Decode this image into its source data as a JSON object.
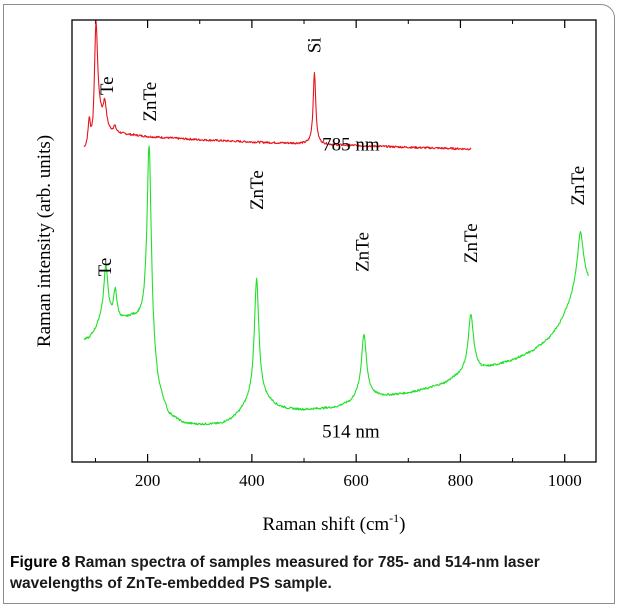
{
  "chart_data": {
    "type": "line",
    "title": "",
    "xlabel": "Raman shift (cm",
    "xlabel_sup": "-1",
    "xlabel_end": ")",
    "ylabel": "Raman intensity (arb. units)",
    "xlim": [
      55,
      1060
    ],
    "ylim": [
      0,
      100
    ],
    "x_ticks": [
      200,
      400,
      600,
      800,
      1000
    ],
    "x_tick_labels": [
      "200",
      "400",
      "600",
      "800",
      "1000"
    ],
    "minor_x_ticks": [
      100,
      300,
      500,
      700,
      900
    ],
    "grid": false,
    "series": [
      {
        "name": "785 nm",
        "color": "#e8141c",
        "x_range": [
          78,
          820
        ],
        "baseline": [
          [
            78,
            70.4
          ],
          [
            84,
            70.8
          ],
          [
            95,
            71.6
          ],
          [
            100,
            76.5
          ],
          [
            103,
            78.2
          ],
          [
            108,
            78.0
          ],
          [
            113,
            76.3
          ],
          [
            120,
            74.8
          ],
          [
            130,
            74.4
          ],
          [
            150,
            74.2
          ],
          [
            200,
            73.6
          ],
          [
            300,
            72.9
          ],
          [
            400,
            72.4
          ],
          [
            500,
            72.0
          ],
          [
            515,
            71.9
          ],
          [
            600,
            71.6
          ],
          [
            700,
            71.2
          ],
          [
            820,
            70.8
          ]
        ],
        "peaks": [
          {
            "center": 88,
            "height": 5.5,
            "width": 2.5
          },
          {
            "center": 101,
            "height": 22.0,
            "width": 3.5
          },
          {
            "center": 118,
            "height": 6.0,
            "width": 4.0
          },
          {
            "center": 137,
            "height": 1.4,
            "width": 3.0
          },
          {
            "center": 520,
            "height": 16.2,
            "width": 3.0
          }
        ]
      },
      {
        "name": "514 nm",
        "color": "#22e02a",
        "x_range": [
          78,
          1045
        ],
        "baseline": [
          [
            78,
            27.5
          ],
          [
            88,
            27.8
          ],
          [
            100,
            29.5
          ],
          [
            110,
            31.5
          ],
          [
            150,
            31.8
          ],
          [
            170,
            32.3
          ],
          [
            185,
            31.5
          ],
          [
            195,
            30.0
          ],
          [
            220,
            16.0
          ],
          [
            240,
            10.5
          ],
          [
            270,
            8.6
          ],
          [
            300,
            8.4
          ],
          [
            340,
            8.6
          ],
          [
            360,
            9.6
          ],
          [
            375,
            11.0
          ],
          [
            390,
            13.0
          ],
          [
            410,
            16.5
          ],
          [
            430,
            14.0
          ],
          [
            450,
            12.5
          ],
          [
            470,
            12.0
          ],
          [
            500,
            11.8
          ],
          [
            560,
            12.3
          ],
          [
            590,
            13.5
          ],
          [
            612,
            16.0
          ],
          [
            640,
            15.0
          ],
          [
            660,
            15.0
          ],
          [
            700,
            15.6
          ],
          [
            740,
            16.7
          ],
          [
            770,
            17.8
          ],
          [
            800,
            19.8
          ],
          [
            822,
            21.5
          ],
          [
            840,
            21.0
          ],
          [
            860,
            21.6
          ],
          [
            900,
            23.0
          ],
          [
            940,
            25.2
          ],
          [
            970,
            28.0
          ],
          [
            990,
            31.0
          ],
          [
            1010,
            36.0
          ],
          [
            1030,
            42.0
          ],
          [
            1045,
            40.5
          ]
        ],
        "peaks": [
          {
            "center": 120,
            "height": 12.5,
            "width": 5.0
          },
          {
            "center": 138,
            "height": 6.5,
            "width": 4.0
          },
          {
            "center": 203,
            "height": 46.0,
            "width": 5.0
          },
          {
            "center": 409,
            "height": 25.0,
            "width": 5.0
          },
          {
            "center": 615,
            "height": 13.0,
            "width": 5.5
          },
          {
            "center": 820,
            "height": 12.0,
            "width": 6.0
          },
          {
            "center": 1030,
            "height": 10.0,
            "width": 7.0
          }
        ]
      }
    ],
    "annotations": [
      {
        "text": "Te",
        "x": 122,
        "y": 83,
        "rotate": true
      },
      {
        "text": "Si",
        "x": 520,
        "y": 92.5,
        "rotate": true
      },
      {
        "text": "785 nm",
        "x": 590,
        "y": 70.5,
        "rotate": false
      },
      {
        "text": "ZnTe",
        "x": 205,
        "y": 77,
        "rotate": true
      },
      {
        "text": "Te",
        "x": 118,
        "y": 42,
        "rotate": true
      },
      {
        "text": "ZnTe",
        "x": 410,
        "y": 57,
        "rotate": true
      },
      {
        "text": "ZnTe",
        "x": 612,
        "y": 43,
        "rotate": true
      },
      {
        "text": "ZnTe",
        "x": 820,
        "y": 45,
        "rotate": true
      },
      {
        "text": "ZnTe",
        "x": 1025,
        "y": 58,
        "rotate": true
      },
      {
        "text": "514 nm",
        "x": 590,
        "y": 5.5,
        "rotate": false
      }
    ]
  },
  "caption": {
    "lead": "Figure 8",
    "text": "Raman spectra of samples measured for 785- and 514-nm laser wavelengths of ZnTe-embedded PS sample."
  }
}
